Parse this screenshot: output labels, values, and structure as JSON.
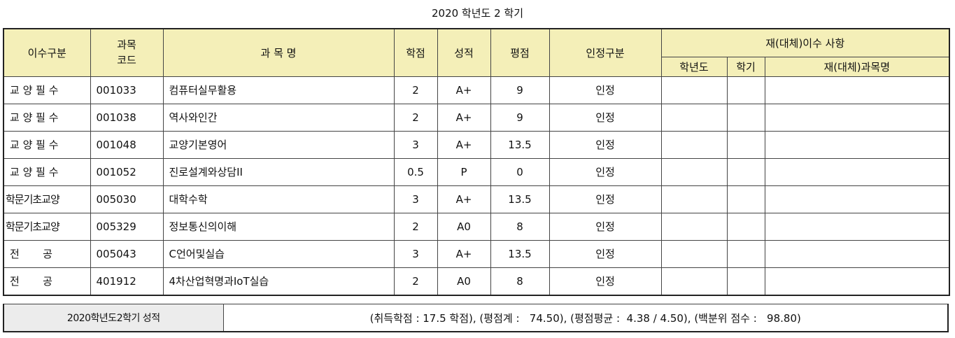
{
  "title": "2020 학년도  2 학기",
  "headers": {
    "category": "이수구분",
    "code": "과목\n코드",
    "name": "과 목 명",
    "credit": "학점",
    "grade": "성적",
    "point": "평점",
    "recognition": "인정구분",
    "retake_group": "재(대체)이수 사항",
    "retake_year": "학년도",
    "retake_term": "학기",
    "retake_name": "재(대체)과목명"
  },
  "rows": [
    {
      "category": "교 양 필 수",
      "code": "001033",
      "name": "컴퓨터실무활용",
      "credit": "2",
      "grade": "A+",
      "point": "9",
      "recognition": "인정"
    },
    {
      "category": "교 양 필 수",
      "code": "001038",
      "name": "역사와인간",
      "credit": "2",
      "grade": "A+",
      "point": "9",
      "recognition": "인정"
    },
    {
      "category": "교 양 필 수",
      "code": "001048",
      "name": "교양기본영어",
      "credit": "3",
      "grade": "A+",
      "point": "13.5",
      "recognition": "인정"
    },
    {
      "category": "교 양 필 수",
      "code": "001052",
      "name": "진로설계와상담II",
      "credit": "0.5",
      "grade": "P",
      "point": "0",
      "recognition": "인정"
    },
    {
      "category": "학문기초교양",
      "code": "005030",
      "name": "대학수학",
      "credit": "3",
      "grade": "A+",
      "point": "13.5",
      "recognition": "인정"
    },
    {
      "category": "학문기초교양",
      "code": "005329",
      "name": "정보통신의이해",
      "credit": "2",
      "grade": "A0",
      "point": "8",
      "recognition": "인정"
    },
    {
      "category": "전       공",
      "code": "005043",
      "name": "C언어및실습",
      "credit": "3",
      "grade": "A+",
      "point": "13.5",
      "recognition": "인정"
    },
    {
      "category": "전       공",
      "code": "401912",
      "name": "4차산업혁명과IoT실습",
      "credit": "2",
      "grade": "A0",
      "point": "8",
      "recognition": "인정"
    }
  ],
  "summary": {
    "label": "2020학년도2학기 성적",
    "value": "(취득학점 : 17.5 학점), (평점계 :   74.50), (평점평균 :  4.38 / 4.50), (백분위 점수 :   98.80)"
  },
  "colors": {
    "header_bg": "#f4efb8",
    "summary_label_bg": "#ececec",
    "border": "#444444"
  }
}
